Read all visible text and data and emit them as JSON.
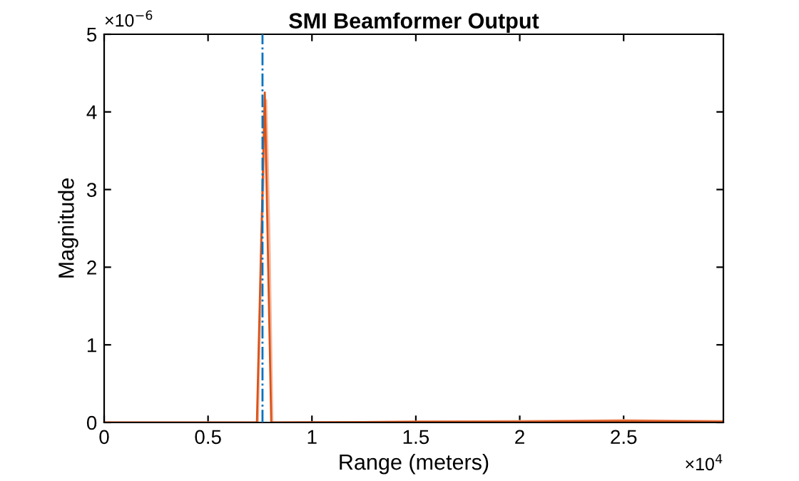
{
  "chart_data": {
    "type": "line",
    "title": "SMI Beamformer Output",
    "xlabel": "Range (meters)",
    "ylabel": "Magnitude",
    "annotations": [
      "×10$^{−6}$",
      "×10$^{4}$"
    ],
    "series": [
      {
        "color": "#f5b79c",
        "x": [
          0,
          0.74,
          0.76,
          0.78,
          0.795,
          0.81,
          1.5,
          2,
          2.5,
          2.98
        ],
        "values": [
          0,
          0,
          2.5,
          4.15,
          2.5,
          0,
          0.01,
          0.02,
          0.03,
          0.02
        ]
      },
      {
        "color": "#d95319",
        "x": [
          0,
          0.735,
          0.773,
          0.804,
          1.5,
          2,
          2.5,
          2.98
        ],
        "values": [
          0,
          0,
          4.25,
          0,
          0.01,
          0.01,
          0.02,
          0.01
        ]
      }
    ],
    "ref_lines": [
      {
        "axis": "x",
        "value": 0.762,
        "color": "#0072bd",
        "line_style": "dashdot"
      }
    ],
    "xlim": [
      0,
      2.98
    ],
    "ylim": [
      0,
      5
    ],
    "xticks": [
      0,
      0.5,
      1,
      1.5,
      2,
      2.5
    ],
    "yticks": [
      0,
      1,
      2,
      3,
      4,
      5
    ],
    "grid": false,
    "legend": false
  }
}
